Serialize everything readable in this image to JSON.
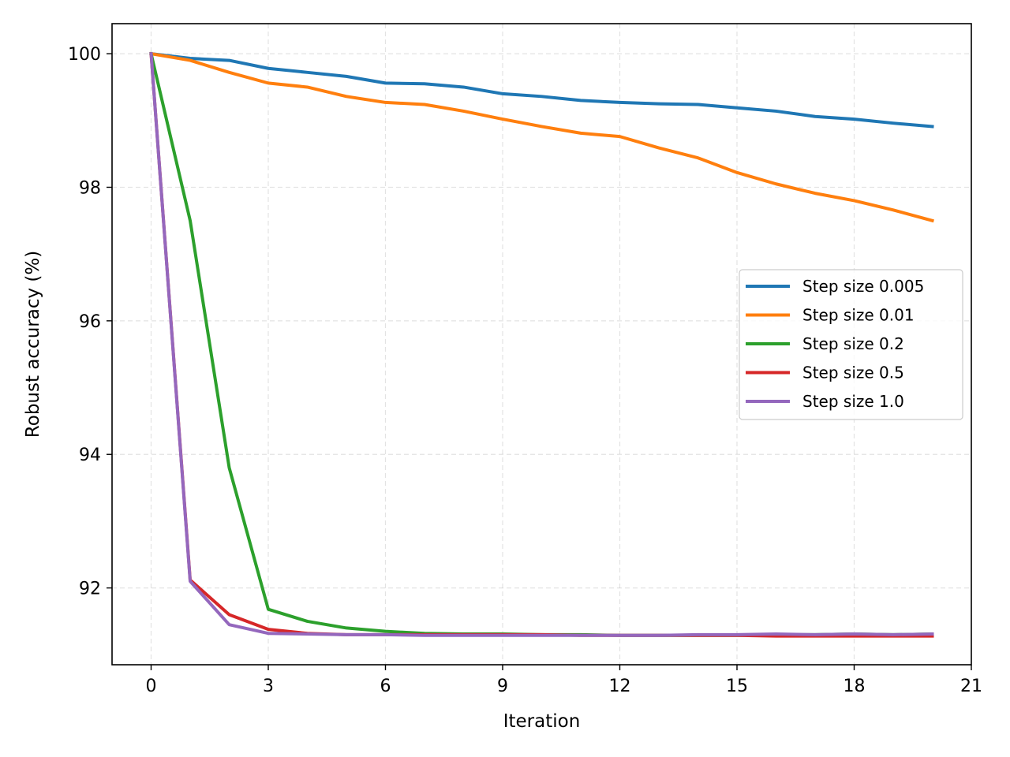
{
  "chart_data": {
    "type": "line",
    "title": "",
    "xlabel": "Iteration",
    "ylabel": "Robust accuracy (%)",
    "xlim": [
      -1,
      21
    ],
    "ylim": [
      90.85,
      100.45
    ],
    "xticks": [
      0,
      3,
      6,
      9,
      12,
      15,
      18,
      21
    ],
    "yticks": [
      92,
      94,
      96,
      98,
      100
    ],
    "grid": true,
    "legend_position": "center-right",
    "x": [
      0,
      1,
      2,
      3,
      4,
      5,
      6,
      7,
      8,
      9,
      10,
      11,
      12,
      13,
      14,
      15,
      16,
      17,
      18,
      19,
      20
    ],
    "series": [
      {
        "name": "Step size 0.005",
        "color": "#1f77b4",
        "values": [
          100.0,
          99.93,
          99.9,
          99.78,
          99.72,
          99.66,
          99.56,
          99.55,
          99.5,
          99.4,
          99.36,
          99.3,
          99.27,
          99.25,
          99.24,
          99.19,
          99.14,
          99.06,
          99.02,
          98.96,
          98.91
        ]
      },
      {
        "name": "Step size 0.01",
        "color": "#ff7f0e",
        "values": [
          100.0,
          99.9,
          99.72,
          99.56,
          99.5,
          99.36,
          99.27,
          99.24,
          99.14,
          99.02,
          98.91,
          98.81,
          98.76,
          98.59,
          98.44,
          98.22,
          98.05,
          97.91,
          97.8,
          97.66,
          97.5
        ]
      },
      {
        "name": "Step size 0.2",
        "color": "#2ca02c",
        "values": [
          100.0,
          97.5,
          93.8,
          91.68,
          91.5,
          91.4,
          91.35,
          91.32,
          91.31,
          91.31,
          91.3,
          91.3,
          91.29,
          91.29,
          91.29,
          91.29,
          91.3,
          91.3,
          91.31,
          91.3,
          91.31
        ]
      },
      {
        "name": "Step size 0.5",
        "color": "#d62728",
        "values": [
          100.0,
          92.12,
          91.6,
          91.38,
          91.32,
          91.3,
          91.3,
          91.3,
          91.3,
          91.3,
          91.3,
          91.29,
          91.29,
          91.29,
          91.29,
          91.29,
          91.28,
          91.28,
          91.28,
          91.28,
          91.28
        ]
      },
      {
        "name": "Step size 1.0",
        "color": "#9467bd",
        "values": [
          100.0,
          92.1,
          91.45,
          91.32,
          91.31,
          91.3,
          91.3,
          91.29,
          91.29,
          91.29,
          91.29,
          91.29,
          91.29,
          91.29,
          91.3,
          91.3,
          91.31,
          91.3,
          91.31,
          91.3,
          91.31
        ]
      }
    ]
  }
}
